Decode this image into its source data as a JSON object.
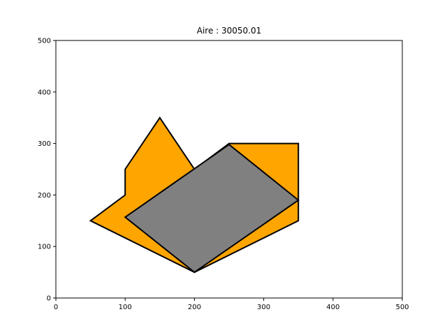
{
  "chart_data": {
    "type": "polygon",
    "title": "Aire : 30050.01",
    "xlim": [
      0,
      500
    ],
    "ylim": [
      0,
      500
    ],
    "xticks": [
      0,
      100,
      200,
      300,
      400,
      500
    ],
    "yticks": [
      0,
      100,
      200,
      300,
      400,
      500
    ],
    "grid": false,
    "polygons": [
      {
        "name": "outer",
        "fill": "#ffa500",
        "stroke": "#000000",
        "points": [
          [
            50,
            150
          ],
          [
            100,
            200
          ],
          [
            100,
            250
          ],
          [
            150,
            350
          ],
          [
            200,
            250
          ],
          [
            250,
            300
          ],
          [
            350,
            300
          ],
          [
            350,
            150
          ],
          [
            200,
            50
          ]
        ]
      },
      {
        "name": "inner",
        "fill": "#808080",
        "stroke": "#000000",
        "points": [
          [
            100,
            157
          ],
          [
            250,
            298
          ],
          [
            350,
            190
          ],
          [
            200,
            50
          ]
        ]
      }
    ]
  }
}
